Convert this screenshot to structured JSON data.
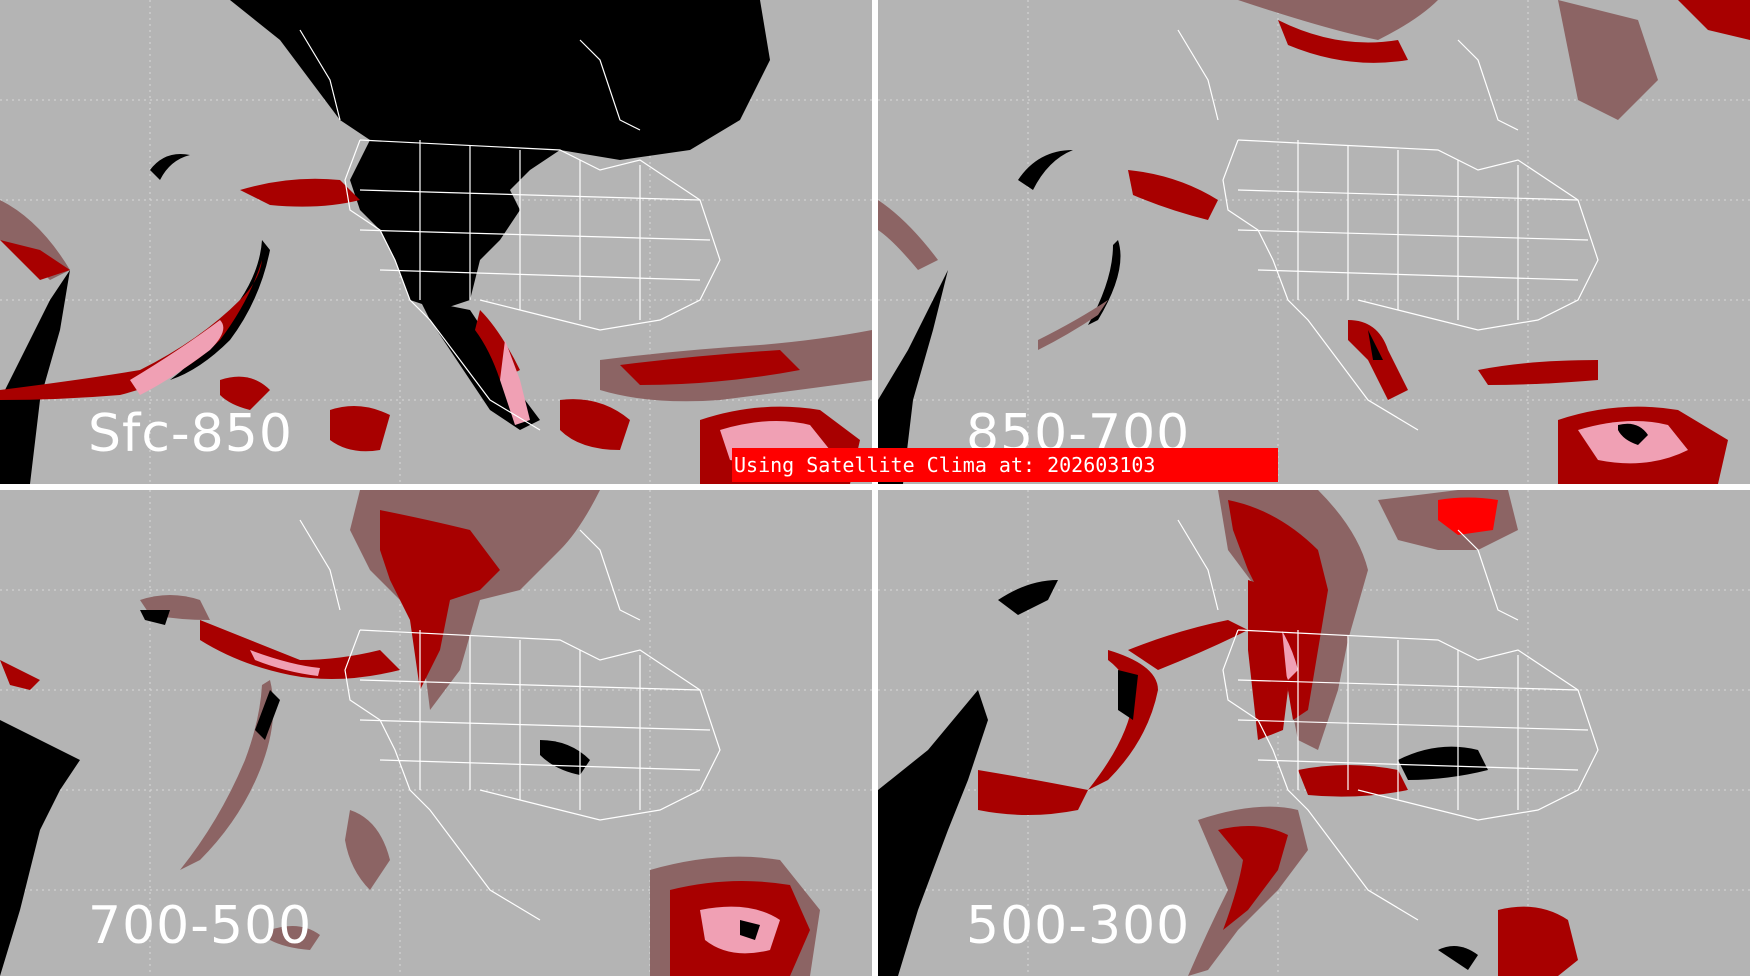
{
  "panels": [
    {
      "id": "p1",
      "label": "Sfc-850"
    },
    {
      "id": "p2",
      "label": "850-700"
    },
    {
      "id": "p3",
      "label": "700-500"
    },
    {
      "id": "p4",
      "label": "500-300"
    }
  ],
  "banner": {
    "text": "Using Satellite Clima at: 202603103"
  },
  "colors": {
    "background": "#b4b4b4",
    "black_region": "#000000",
    "dark_red": "#a80000",
    "muted_red": "#8c6464",
    "pink": "#f0a0b4",
    "bright_red": "#ff0000",
    "borders": "#ffffff"
  }
}
